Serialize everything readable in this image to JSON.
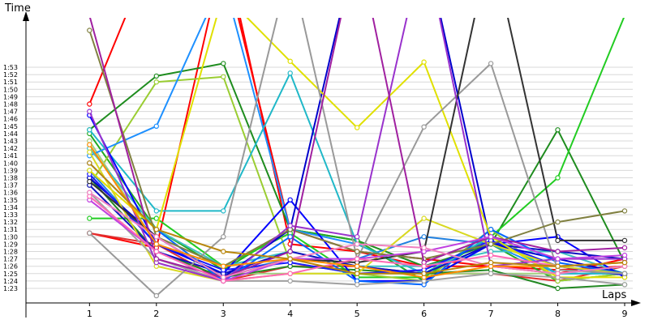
{
  "chart_data": {
    "type": "line",
    "ylabel": "Time",
    "xlabel": "Laps",
    "x": [
      1,
      2,
      3,
      4,
      5,
      6,
      7,
      8,
      9
    ],
    "xlim": [
      0.05,
      9
    ],
    "ylim": [
      82,
      115.5
    ],
    "y_tick_labels": [
      "1:23",
      "1:24",
      "1:25",
      "1:26",
      "1:27",
      "1:28",
      "1:29",
      "1:30",
      "1:31",
      "1:32",
      "1:33",
      "1:34",
      "1:35",
      "1:36",
      "1:37",
      "1:38",
      "1:39",
      "1:40",
      "1:41",
      "1:42",
      "1:43",
      "1:44",
      "1:45",
      "1:46",
      "1:47",
      "1:48",
      "1:49",
      "1:50",
      "1:51",
      "1:52",
      "1:53"
    ],
    "grid": true,
    "legend": "none",
    "series": [
      {
        "color": "#ff0000",
        "values": [
          108,
          130,
          130,
          89,
          88,
          86,
          86,
          85,
          87
        ]
      },
      {
        "color": "#ff0000",
        "values": [
          90.5,
          88.5,
          128,
          91,
          88,
          87,
          86,
          85.5,
          86
        ]
      },
      {
        "color": "#e03030",
        "values": [
          90.5,
          89,
          84,
          86,
          86,
          85,
          85,
          84,
          86
        ]
      },
      {
        "color": "#1e8c1e",
        "values": [
          104.5,
          111.8,
          113.5,
          91,
          89.5,
          86,
          89,
          104.5,
          86.5
        ]
      },
      {
        "color": "#22aa22",
        "values": [
          104,
          91,
          85.5,
          91,
          89.5,
          84,
          89,
          84,
          85
        ]
      },
      {
        "color": "#22cc22",
        "values": [
          92.5,
          92.5,
          86,
          90.5,
          84.5,
          84.5,
          90,
          98,
          120
        ]
      },
      {
        "color": "#9acd32",
        "values": [
          97,
          111,
          111.7,
          86.5,
          85,
          84,
          91,
          84,
          85
        ]
      },
      {
        "color": "#a0d080",
        "values": [
          103,
          89,
          85,
          85,
          85,
          85,
          85,
          85,
          86
        ]
      },
      {
        "color": "#228822",
        "values": [
          98,
          88,
          84.5,
          86,
          85.5,
          85,
          85.5,
          83,
          83.5
        ]
      },
      {
        "color": "#1e90ff",
        "values": [
          101,
          105,
          125,
          91,
          89,
          85,
          89,
          85,
          85
        ]
      },
      {
        "color": "#2080e0",
        "values": [
          99,
          89,
          85,
          87,
          87,
          90,
          89,
          86,
          85
        ]
      },
      {
        "color": "#20b8c8",
        "values": [
          104.5,
          93.5,
          93.5,
          112.2,
          89,
          85,
          90,
          85,
          85
        ]
      },
      {
        "color": "#40c0c0",
        "values": [
          102,
          91,
          86,
          88,
          86,
          86,
          88,
          88,
          85
        ]
      },
      {
        "color": "#0000ff",
        "values": [
          106.5,
          89,
          85,
          95,
          84,
          84,
          89,
          90,
          84.5
        ]
      },
      {
        "color": "#1010c0",
        "values": [
          97,
          88,
          85,
          88,
          86,
          85,
          89,
          88,
          87
        ]
      },
      {
        "color": "#0000cc",
        "values": [
          98,
          90,
          84.5,
          91,
          130,
          130,
          89,
          87,
          85
        ]
      },
      {
        "color": "#1a1aff",
        "values": [
          98.5,
          89,
          85.5,
          86.5,
          85,
          85.5,
          89.5,
          86,
          84.8
        ]
      },
      {
        "color": "#0066ff",
        "values": [
          100,
          91,
          84,
          90,
          84,
          83.5,
          91,
          86.5,
          85
        ]
      },
      {
        "color": "#e0e000",
        "values": [
          99,
          91,
          123,
          113.8,
          104.8,
          113.7,
          90,
          84.5,
          84.5
        ]
      },
      {
        "color": "#d8d820",
        "values": [
          101.5,
          86,
          84,
          85,
          85,
          92.5,
          89,
          86,
          85
        ]
      },
      {
        "color": "#999999",
        "values": [
          90.5,
          82,
          90,
          127,
          87,
          104.9,
          113.5,
          85.5,
          85
        ]
      },
      {
        "color": "#a0a0a0",
        "values": [
          96,
          87,
          84,
          84,
          83.5,
          84,
          85,
          84.5,
          83.5
        ]
      },
      {
        "color": "#333333",
        "values": [
          97.5,
          90,
          84.5,
          87,
          86.5,
          88,
          130,
          89.5,
          89.5
        ]
      },
      {
        "color": "#808040",
        "values": [
          118,
          90,
          86,
          91,
          88,
          87,
          89,
          92,
          93.5
        ]
      },
      {
        "color": "#9932cc",
        "values": [
          107,
          86.5,
          84,
          91.5,
          90,
          130,
          86,
          87,
          87
        ]
      },
      {
        "color": "#a020a0",
        "values": [
          120,
          87,
          84.5,
          88,
          130,
          86.5,
          90,
          88,
          88.5
        ]
      },
      {
        "color": "#c040e0",
        "values": [
          95,
          88,
          84,
          87,
          87,
          88,
          90,
          87,
          87.5
        ]
      },
      {
        "color": "#ff69b4",
        "values": [
          95.5,
          88,
          84,
          85,
          87,
          86,
          87.5,
          86,
          86.5
        ]
      },
      {
        "color": "#f080c0",
        "values": [
          96,
          90,
          84.5,
          87,
          89,
          88.5,
          86,
          85,
          86
        ]
      },
      {
        "color": "#ff8c00",
        "values": [
          102.5,
          89,
          86,
          87,
          86,
          84.5,
          86,
          86,
          86.5
        ]
      },
      {
        "color": "#b8860b",
        "values": [
          100,
          91,
          88,
          87,
          85,
          85,
          86.5,
          86,
          86.5
        ]
      }
    ]
  }
}
